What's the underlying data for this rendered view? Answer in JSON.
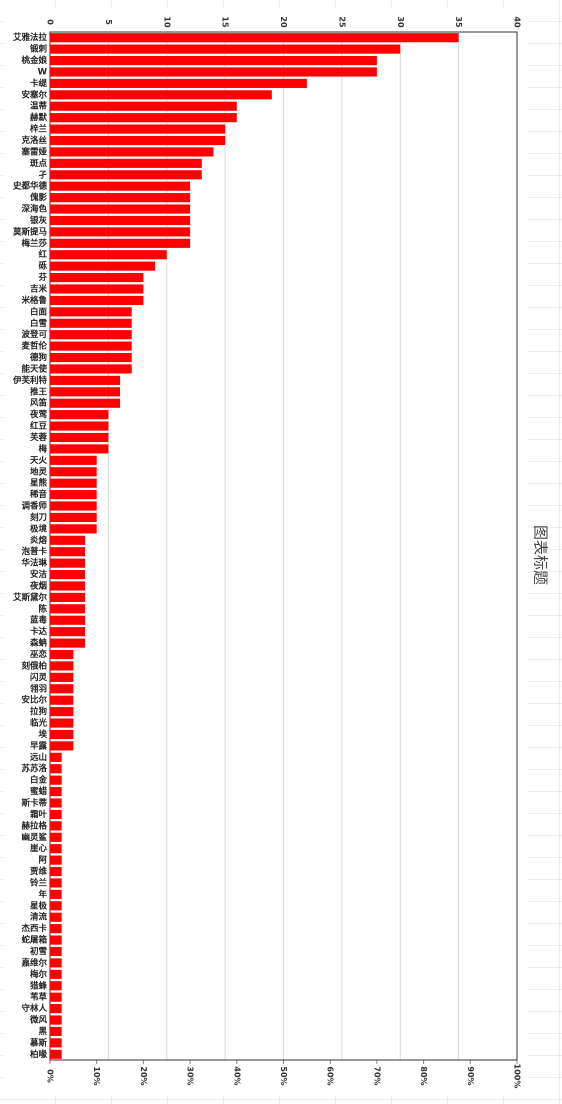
{
  "chart_data": {
    "type": "bar",
    "orientation": "horizontal",
    "title": "图表标题",
    "categories": [
      "艾雅法拉",
      "锻刺",
      "桃金娘",
      "W",
      "卡缇",
      "安塞尔",
      "温蒂",
      "赫默",
      "梓兰",
      "克洛丝",
      "塞雷娅",
      "斑点",
      "孑",
      "史都华德",
      "傀影",
      "深海色",
      "银灰",
      "莫斯提马",
      "梅兰莎",
      "红",
      "砾",
      "芬",
      "吉米",
      "米格鲁",
      "白面",
      "白雪",
      "波登可",
      "麦哲伦",
      "德狗",
      "能天使",
      "伊芙利特",
      "推王",
      "风笛",
      "夜莺",
      "红豆",
      "芙蓉",
      "梅",
      "天火",
      "地灵",
      "星熊",
      "稀音",
      "调香师",
      "刻刀",
      "极境",
      "炎熔",
      "泡普卡",
      "华法琳",
      "安洁",
      "夜烟",
      "艾斯黛尔",
      "陈",
      "蓝毒",
      "卡达",
      "森蚺",
      "巫恋",
      "刻俄柏",
      "闪灵",
      "翎羽",
      "安比尔",
      "拉狗",
      "临光",
      "埃",
      "早露",
      "远山",
      "苏苏洛",
      "白金",
      "蜜蜡",
      "斯卡蒂",
      "霜叶",
      "赫拉格",
      "幽灵鲨",
      "崖心",
      "阿",
      "贾维",
      "铃兰",
      "年",
      "星极",
      "清流",
      "杰西卡",
      "蛇屠箱",
      "初雪",
      "嘉维尔",
      "梅尔",
      "猎蜂",
      "苇草",
      "守林人",
      "微风",
      "黑",
      "慕斯",
      "柏喙"
    ],
    "values": [
      35,
      30,
      28,
      28,
      22,
      19,
      16,
      16,
      15,
      15,
      14,
      13,
      13,
      12,
      12,
      12,
      12,
      12,
      12,
      10,
      9,
      8,
      8,
      8,
      7,
      7,
      7,
      7,
      7,
      7,
      6,
      6,
      6,
      5,
      5,
      5,
      5,
      4,
      4,
      4,
      4,
      4,
      4,
      4,
      3,
      3,
      3,
      3,
      3,
      3,
      3,
      3,
      3,
      3,
      2,
      2,
      2,
      2,
      2,
      2,
      2,
      2,
      2,
      1,
      1,
      1,
      1,
      1,
      1,
      1,
      1,
      1,
      1,
      1,
      1,
      1,
      1,
      1,
      1,
      1,
      1,
      1,
      1,
      1,
      1,
      1,
      1,
      1,
      1,
      1
    ],
    "color": "#ff0000",
    "xlim": [
      0,
      40
    ],
    "xticks": [
      0,
      5,
      10,
      15,
      20,
      25,
      30,
      35,
      40
    ],
    "x2lim": [
      0,
      100
    ],
    "x2ticks": [
      {
        "value": 0,
        "label": "0%"
      },
      {
        "value": 10,
        "label": "10%"
      },
      {
        "value": 20,
        "label": "20%"
      },
      {
        "value": 30,
        "label": "30%"
      },
      {
        "value": 40,
        "label": "40%"
      },
      {
        "value": 50,
        "label": "50%"
      },
      {
        "value": 60,
        "label": "60%"
      },
      {
        "value": 70,
        "label": "70%"
      },
      {
        "value": 80,
        "label": "80%"
      },
      {
        "value": 90,
        "label": "90%"
      },
      {
        "value": 100,
        "label": "100%"
      }
    ],
    "grid": true
  }
}
